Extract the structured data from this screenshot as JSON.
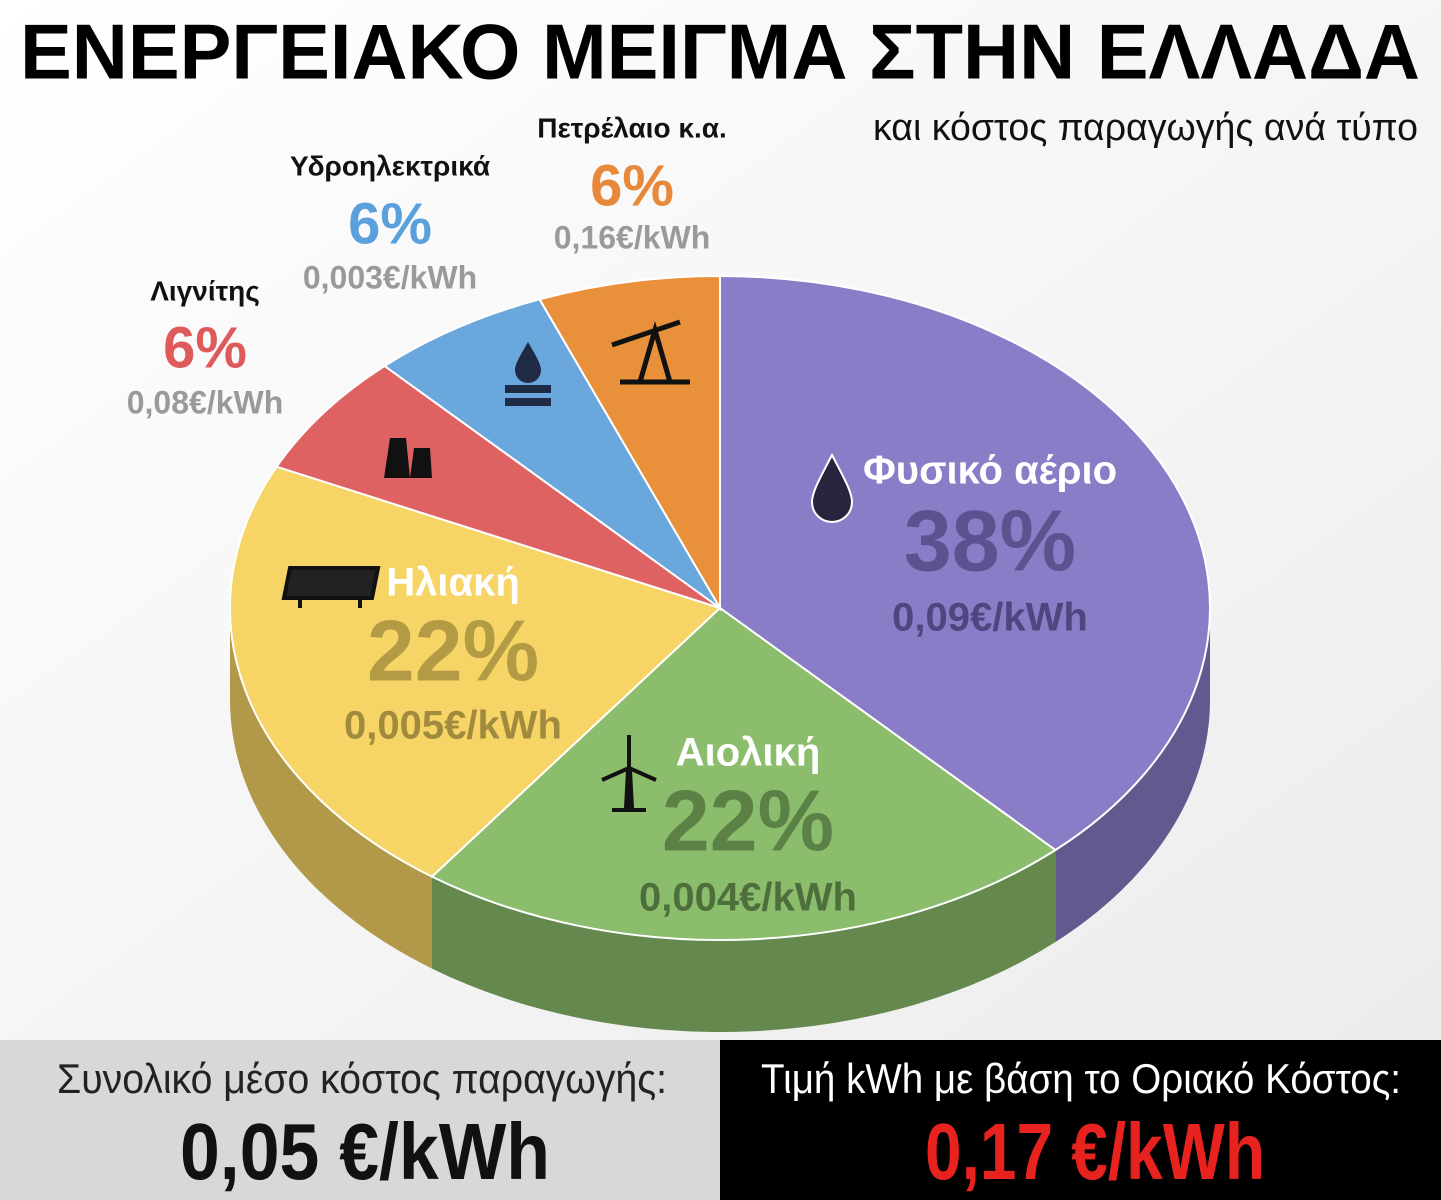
{
  "chart_data": {
    "type": "pie3d",
    "title": "ΕΝΕΡΓΕΙΑΚΟ ΜΕΙΓΜΑ ΣΤΗΝ ΕΛΛΑΔΑ",
    "subtitle": "και κόστος παραγωγής ανά τύπο",
    "categories": [
      "Φυσικό αέριο",
      "Αιολική",
      "Ηλιακή",
      "Λιγνίτης",
      "Υδροηλεκτρικά",
      "Πετρέλαιο κ.α."
    ],
    "values": [
      38,
      22,
      22,
      6,
      6,
      6
    ],
    "value_labels": [
      "38%",
      "22%",
      "22%",
      "6%",
      "6%",
      "6%"
    ],
    "costs": [
      "0,09€/kWh",
      "0,004€/kWh",
      "0,005€/kWh",
      "0,08€/kWh",
      "0,003€/kWh",
      "0,16€/kWh"
    ],
    "colors": [
      "#8a7cc6",
      "#8cbd6c",
      "#f7d466",
      "#df6262",
      "#6aa7dc",
      "#e8913a"
    ]
  },
  "footer": {
    "left": {
      "label": "Συνολικό μέσο κόστος παραγωγής:",
      "value": "0,05 €/kWh"
    },
    "right": {
      "label": "Τιμή kWh με βάση το Οριακό Κόστος:",
      "value": "0,17 €/kWh"
    }
  }
}
